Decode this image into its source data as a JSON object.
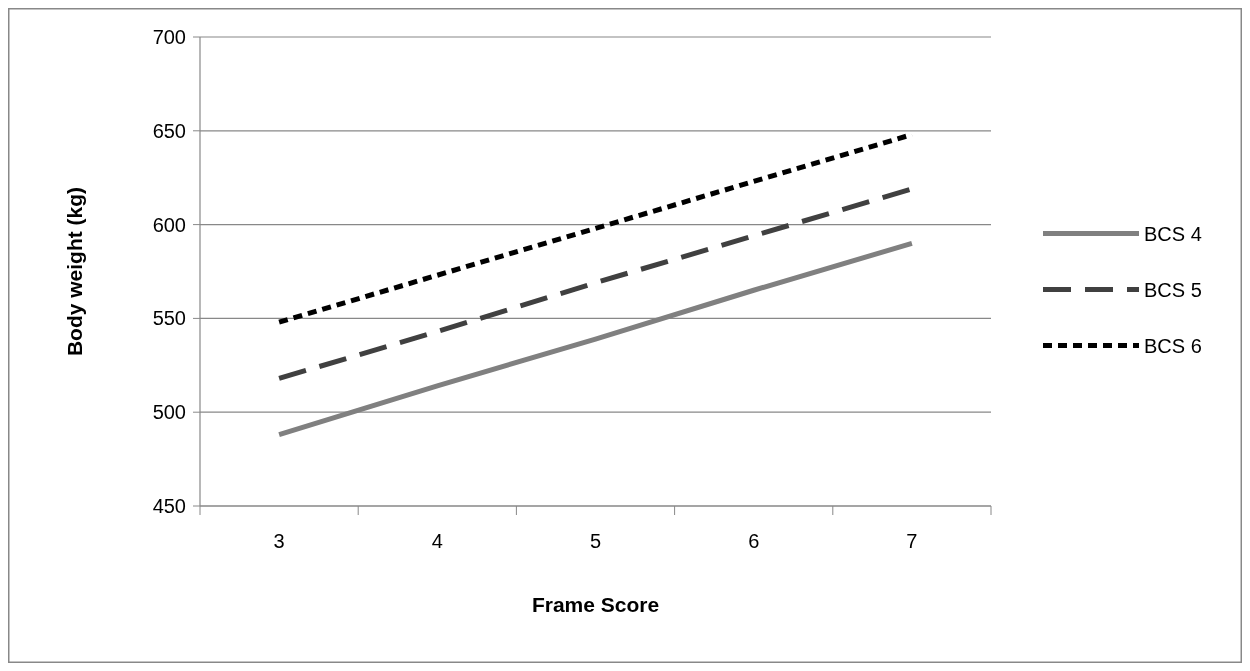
{
  "chart_data": {
    "type": "line",
    "xlabel": "Frame Score",
    "ylabel": "Body weight (kg)",
    "categories": [
      "3",
      "4",
      "5",
      "6",
      "7"
    ],
    "ylim": [
      450,
      700
    ],
    "yticks": [
      450,
      500,
      550,
      600,
      650,
      700
    ],
    "grid": "y",
    "legend": "right",
    "marker": "none",
    "series": [
      {
        "name": "BCS 4",
        "color": "#808080",
        "line_style": "solid",
        "values": [
          488,
          514,
          539,
          565,
          590
        ]
      },
      {
        "name": "BCS 5",
        "color": "#404040",
        "line_style": "dashed",
        "values": [
          518,
          543,
          569,
          594,
          619
        ]
      },
      {
        "name": "BCS 6",
        "color": "#000000",
        "line_style": "dotted",
        "values": [
          548,
          573,
          598,
          623,
          648
        ]
      }
    ]
  }
}
